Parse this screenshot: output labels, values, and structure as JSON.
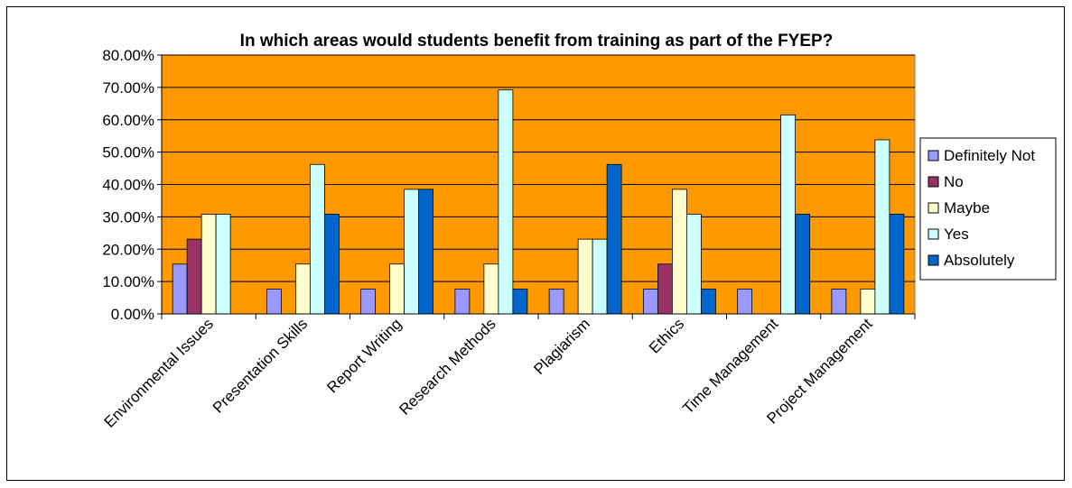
{
  "chart_data": {
    "type": "bar",
    "title": "In which areas would students benefit from training as part of the FYEP?",
    "xlabel": "",
    "ylabel": "",
    "ylim": [
      0,
      0.8
    ],
    "y_ticks": [
      "0.00%",
      "10.00%",
      "20.00%",
      "30.00%",
      "40.00%",
      "50.00%",
      "60.00%",
      "70.00%",
      "80.00%"
    ],
    "grid": true,
    "legend_position": "right",
    "plot_background": "#FF9900",
    "categories": [
      "Environmental Issues",
      "Presentation Skills",
      "Report Writing",
      "Research Methods",
      "Plagiarism",
      "Ethics",
      "Time Management",
      "Project Management"
    ],
    "series": [
      {
        "name": "Definitely Not",
        "color": "#9999FF",
        "values": [
          0.154,
          0.077,
          0.077,
          0.077,
          0.077,
          0.077,
          0.077,
          0.077
        ]
      },
      {
        "name": "No",
        "color": "#993366",
        "values": [
          0.231,
          0,
          0,
          0,
          0,
          0.154,
          0,
          0
        ]
      },
      {
        "name": "Maybe",
        "color": "#FFFFCC",
        "values": [
          0.308,
          0.154,
          0.154,
          0.154,
          0.231,
          0.385,
          0,
          0.077
        ]
      },
      {
        "name": "Yes",
        "color": "#CCFFFF",
        "values": [
          0.308,
          0.462,
          0.385,
          0.692,
          0.231,
          0.308,
          0.615,
          0.538
        ]
      },
      {
        "name": "Absolutely",
        "color": "#0066CC",
        "values": [
          0,
          0.308,
          0.385,
          0.077,
          0.462,
          0.077,
          0.308,
          0.308
        ]
      }
    ]
  }
}
